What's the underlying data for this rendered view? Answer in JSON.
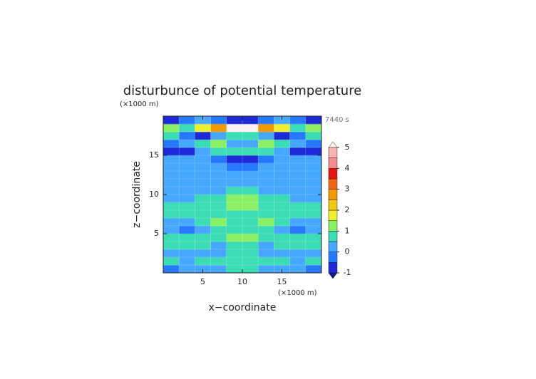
{
  "chart_data": {
    "type": "contourf",
    "title": "disturbunce of potential temperature",
    "x_label": "x−coordinate",
    "y_label": "z−coordinate",
    "x_unit_label": "(×1000 m)",
    "y_unit_label": "(×1000 m)",
    "time_label": "7440 s",
    "xlim": [
      0,
      20
    ],
    "ylim": [
      0,
      20
    ],
    "xticks": [
      5,
      10,
      15
    ],
    "yticks": [
      5,
      10,
      15
    ],
    "grid": true,
    "x_edges": [
      0,
      2,
      4,
      6,
      8,
      10,
      12,
      14,
      16,
      18,
      20
    ],
    "z_edges": [
      0,
      1,
      2,
      3,
      4,
      5,
      6,
      7,
      8,
      9,
      10,
      11,
      12,
      13,
      14,
      15,
      16,
      17,
      18,
      19,
      20
    ],
    "values": [
      [
        -0.2,
        0.2,
        0.2,
        0.2,
        0.7,
        0.7,
        0.2,
        0.2,
        0.2,
        -0.2
      ],
      [
        0.7,
        0.2,
        0.7,
        0.7,
        0.7,
        0.7,
        0.7,
        0.7,
        0.2,
        0.7
      ],
      [
        0.2,
        0.2,
        0.2,
        0.2,
        0.7,
        0.7,
        0.2,
        0.2,
        0.2,
        0.2
      ],
      [
        0.7,
        0.7,
        0.7,
        0.2,
        0.7,
        0.7,
        0.2,
        0.7,
        0.7,
        0.7
      ],
      [
        0.7,
        0.7,
        0.7,
        0.7,
        1.2,
        1.2,
        0.7,
        0.7,
        0.7,
        0.7
      ],
      [
        0.2,
        -0.2,
        0.2,
        0.7,
        0.7,
        0.7,
        0.7,
        0.2,
        -0.2,
        0.2
      ],
      [
        0.2,
        0.2,
        0.7,
        1.2,
        0.7,
        0.7,
        1.2,
        0.7,
        0.2,
        0.2
      ],
      [
        0.7,
        0.7,
        0.7,
        0.7,
        0.7,
        0.7,
        0.7,
        0.7,
        0.7,
        0.7
      ],
      [
        0.7,
        0.7,
        0.7,
        0.7,
        1.2,
        1.2,
        0.7,
        0.7,
        0.7,
        0.7
      ],
      [
        0.2,
        0.2,
        0.7,
        0.7,
        1.2,
        1.2,
        0.7,
        0.7,
        0.2,
        0.2
      ],
      [
        0.2,
        0.2,
        0.2,
        0.2,
        0.7,
        0.7,
        0.2,
        0.2,
        0.2,
        0.2
      ],
      [
        0.2,
        0.2,
        0.2,
        0.2,
        0.2,
        0.2,
        0.2,
        0.2,
        0.2,
        0.2
      ],
      [
        0.2,
        0.2,
        0.2,
        0.2,
        0.2,
        0.2,
        0.2,
        0.2,
        0.2,
        0.2
      ],
      [
        0.2,
        0.2,
        0.2,
        0.2,
        -0.2,
        -0.2,
        0.2,
        0.2,
        0.2,
        0.2
      ],
      [
        0.2,
        0.2,
        0.2,
        -0.2,
        -0.7,
        -0.7,
        -0.2,
        0.2,
        0.2,
        0.2
      ],
      [
        -0.7,
        -0.7,
        0.2,
        0.7,
        0.7,
        0.7,
        0.7,
        0.2,
        -0.7,
        -0.7
      ],
      [
        -0.2,
        0.2,
        0.7,
        1.2,
        0.2,
        0.2,
        1.2,
        0.7,
        0.2,
        -0.2
      ],
      [
        0.7,
        -0.2,
        -0.7,
        0.2,
        0.7,
        0.7,
        0.2,
        -0.7,
        -0.2,
        0.7
      ],
      [
        1.2,
        0.7,
        1.7,
        2.7,
        5.2,
        5.2,
        2.7,
        1.7,
        0.7,
        1.2
      ],
      [
        -0.7,
        -0.2,
        0.2,
        -0.2,
        -0.7,
        -0.7,
        -0.2,
        0.2,
        -0.2,
        -0.7
      ]
    ],
    "colorbar": {
      "levels": [
        -1,
        -0.5,
        0,
        0.5,
        1,
        1.5,
        2,
        2.5,
        3,
        3.5,
        4,
        4.5,
        5
      ],
      "colors": [
        "#1e2ad8",
        "#2678ff",
        "#46a8ff",
        "#3cdcb4",
        "#8cf064",
        "#f0f032",
        "#f0c814",
        "#f09a00",
        "#f06414",
        "#e61414",
        "#f08c8c",
        "#f8b4b4"
      ],
      "under_color": "#14148c",
      "over_color": "#fff0f0",
      "ticks": [
        -1,
        0,
        1,
        2,
        3,
        4,
        5
      ]
    }
  }
}
